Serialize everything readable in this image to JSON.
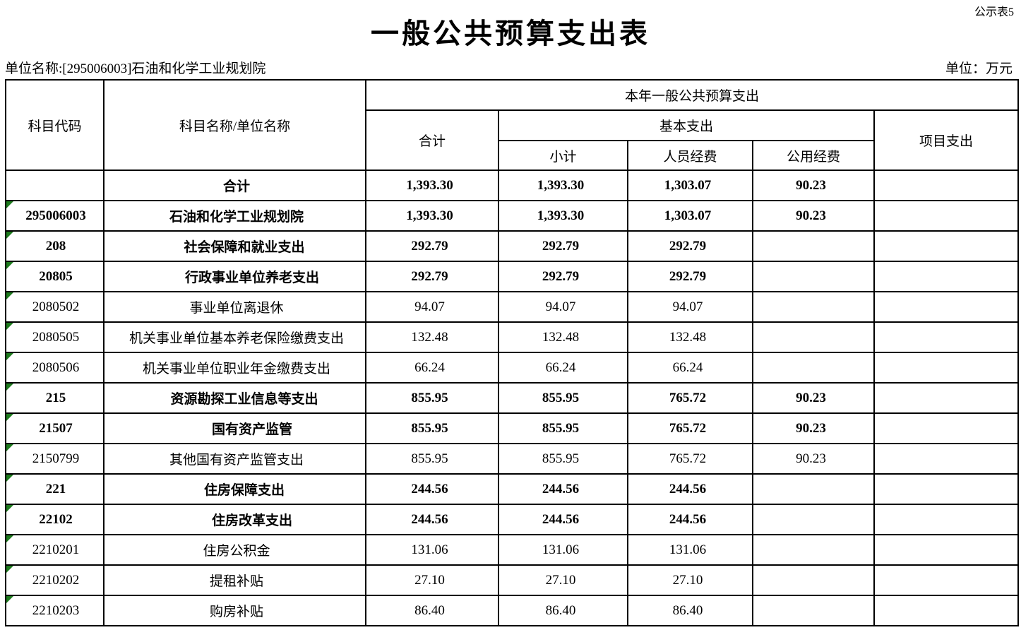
{
  "page": {
    "corner_label": "公示表5",
    "title": "一般公共预算支出表",
    "unit_name_label": "单位名称:[295006003]石油和化学工业规划院",
    "unit_label": "单位：万元"
  },
  "table": {
    "headers": {
      "code": "科目代码",
      "name": "科目名称/单位名称",
      "current_year": "本年一般公共预算支出",
      "total": "合计",
      "basic": "基本支出",
      "subtotal": "小计",
      "personnel": "人员经费",
      "public": "公用经费",
      "project": "项目支出"
    },
    "marker_color": "#1e7b1e",
    "rows": [
      {
        "code": "",
        "name": "合计",
        "total": "1,393.30",
        "subtotal": "1,393.30",
        "personnel": "1,303.07",
        "public": "90.23",
        "project": "",
        "bold": true,
        "indent": 0,
        "marker": false
      },
      {
        "code": "295006003",
        "name": "石油和化学工业规划院",
        "total": "1,393.30",
        "subtotal": "1,393.30",
        "personnel": "1,303.07",
        "public": "90.23",
        "project": "",
        "bold": true,
        "indent": 0,
        "marker": true
      },
      {
        "code": "208",
        "name": "社会保障和就业支出",
        "total": "292.79",
        "subtotal": "292.79",
        "personnel": "292.79",
        "public": "",
        "project": "",
        "bold": true,
        "indent": 1,
        "marker": true
      },
      {
        "code": "20805",
        "name": "行政事业单位养老支出",
        "total": "292.79",
        "subtotal": "292.79",
        "personnel": "292.79",
        "public": "",
        "project": "",
        "bold": true,
        "indent": 2,
        "marker": true
      },
      {
        "code": "2080502",
        "name": "事业单位离退休",
        "total": "94.07",
        "subtotal": "94.07",
        "personnel": "94.07",
        "public": "",
        "project": "",
        "bold": false,
        "indent": 0,
        "marker": true
      },
      {
        "code": "2080505",
        "name": "机关事业单位基本养老保险缴费支出",
        "total": "132.48",
        "subtotal": "132.48",
        "personnel": "132.48",
        "public": "",
        "project": "",
        "bold": false,
        "indent": 0,
        "marker": true
      },
      {
        "code": "2080506",
        "name": "机关事业单位职业年金缴费支出",
        "total": "66.24",
        "subtotal": "66.24",
        "personnel": "66.24",
        "public": "",
        "project": "",
        "bold": false,
        "indent": 0,
        "marker": true
      },
      {
        "code": "215",
        "name": "资源勘探工业信息等支出",
        "total": "855.95",
        "subtotal": "855.95",
        "personnel": "765.72",
        "public": "90.23",
        "project": "",
        "bold": true,
        "indent": 1,
        "marker": true
      },
      {
        "code": "21507",
        "name": "国有资产监管",
        "total": "855.95",
        "subtotal": "855.95",
        "personnel": "765.72",
        "public": "90.23",
        "project": "",
        "bold": true,
        "indent": 2,
        "marker": true
      },
      {
        "code": "2150799",
        "name": "其他国有资产监管支出",
        "total": "855.95",
        "subtotal": "855.95",
        "personnel": "765.72",
        "public": "90.23",
        "project": "",
        "bold": false,
        "indent": 0,
        "marker": true
      },
      {
        "code": "221",
        "name": "住房保障支出",
        "total": "244.56",
        "subtotal": "244.56",
        "personnel": "244.56",
        "public": "",
        "project": "",
        "bold": true,
        "indent": 1,
        "marker": true
      },
      {
        "code": "22102",
        "name": "住房改革支出",
        "total": "244.56",
        "subtotal": "244.56",
        "personnel": "244.56",
        "public": "",
        "project": "",
        "bold": true,
        "indent": 2,
        "marker": true
      },
      {
        "code": "2210201",
        "name": "住房公积金",
        "total": "131.06",
        "subtotal": "131.06",
        "personnel": "131.06",
        "public": "",
        "project": "",
        "bold": false,
        "indent": 0,
        "marker": true
      },
      {
        "code": "2210202",
        "name": "提租补贴",
        "total": "27.10",
        "subtotal": "27.10",
        "personnel": "27.10",
        "public": "",
        "project": "",
        "bold": false,
        "indent": 0,
        "marker": true
      },
      {
        "code": "2210203",
        "name": "购房补贴",
        "total": "86.40",
        "subtotal": "86.40",
        "personnel": "86.40",
        "public": "",
        "project": "",
        "bold": false,
        "indent": 0,
        "marker": true
      }
    ]
  }
}
